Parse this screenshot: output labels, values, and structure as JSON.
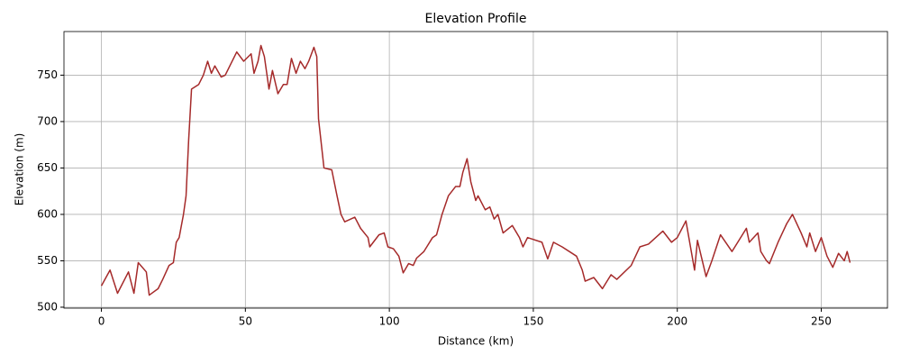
{
  "chart_data": {
    "type": "line",
    "title": "Elevation Profile",
    "x_label": "Distance (km)",
    "y_label": "Elevation (m)",
    "x": [
      0,
      3,
      5.6,
      9.4,
      11.3,
      12.8,
      15.6,
      16.6,
      19.7,
      21.3,
      23.5,
      25,
      26,
      27,
      28.5,
      29.4,
      30.3,
      31.3,
      33.8,
      35.4,
      36.9,
      38.2,
      39.4,
      41.6,
      43,
      47,
      49.4,
      52,
      53,
      54.4,
      55.4,
      56.6,
      58.2,
      59.4,
      61.3,
      63.2,
      64.5,
      66,
      67.6,
      69.1,
      70.7,
      72,
      73.8,
      74.8,
      75.4,
      77.3,
      80,
      81.7,
      83.2,
      84.5,
      88,
      90,
      92.6,
      93.2,
      96.4,
      98.2,
      99.5,
      101.4,
      103.3,
      104.8,
      106.7,
      108.3,
      109.5,
      112,
      113,
      115,
      116.4,
      118.3,
      120.5,
      123,
      124.5,
      125.5,
      127,
      128.3,
      130,
      130.8,
      133.3,
      134.9,
      136.4,
      137.7,
      139.5,
      142.7,
      145.2,
      146.4,
      148,
      153,
      155,
      157,
      160,
      165,
      167,
      168,
      171,
      174,
      177,
      179,
      184,
      187,
      190,
      195,
      198,
      200,
      203,
      206,
      207,
      210,
      212,
      215,
      219,
      221,
      224,
      225,
      228,
      229,
      231,
      232,
      235,
      238,
      240,
      243,
      245,
      246,
      248,
      250,
      252,
      254,
      256,
      258,
      259,
      260
    ],
    "values": [
      523,
      540,
      515,
      538,
      515,
      548,
      538,
      513,
      520,
      530,
      545,
      548,
      570,
      575,
      600,
      620,
      680,
      735,
      740,
      750,
      765,
      752,
      760,
      748,
      750,
      775,
      765,
      773,
      752,
      765,
      782,
      770,
      735,
      755,
      730,
      740,
      740,
      768,
      752,
      765,
      757,
      765,
      780,
      770,
      703,
      650,
      648,
      622,
      600,
      592,
      597,
      585,
      575,
      565,
      578,
      580,
      565,
      563,
      555,
      537,
      547,
      545,
      553,
      560,
      565,
      575,
      578,
      600,
      620,
      630,
      630,
      645,
      660,
      635,
      615,
      620,
      605,
      608,
      595,
      600,
      580,
      588,
      575,
      565,
      575,
      570,
      552,
      570,
      565,
      555,
      540,
      528,
      532,
      520,
      535,
      530,
      545,
      565,
      568,
      582,
      570,
      575,
      593,
      540,
      572,
      533,
      550,
      578,
      560,
      570,
      585,
      570,
      580,
      560,
      550,
      547,
      570,
      590,
      600,
      580,
      565,
      580,
      560,
      575,
      555,
      543,
      558,
      550,
      560,
      548
    ],
    "color": "#a52a2a",
    "xlim": [
      -13,
      273
    ],
    "ylim": [
      499,
      797
    ],
    "xticks": [
      0,
      50,
      100,
      150,
      200,
      250
    ],
    "yticks": [
      500,
      550,
      600,
      650,
      700,
      750
    ],
    "grid": true
  }
}
